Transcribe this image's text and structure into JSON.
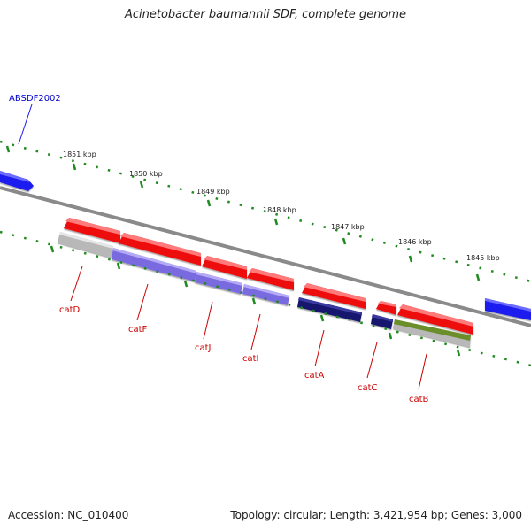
{
  "title": "Acinetobacter baumannii SDF, complete genome",
  "footer": {
    "accession": "Accession: NC_010400",
    "summary": "Topology: circular; Length: 3,421,954 bp; Genes: 3,000"
  },
  "top_gene_label": "ABSDF2002",
  "scale_labels": [
    "1851 kbp",
    "1850 kbp",
    "1849 kbp",
    "1848 kbp",
    "1847 kbp",
    "1846 kbp",
    "1845 kbp"
  ],
  "gene_labels": [
    "catD",
    "catF",
    "catJ",
    "catI",
    "catA",
    "catC",
    "catB"
  ],
  "colors": {
    "backbone": "#8a8a8a",
    "gene_forward": "#1a1aee",
    "gene_reverse": "#ee1111",
    "cds_gray": "#b8b8b8",
    "cds_blue": "#7a6ae0",
    "cds_navy": "#14146e",
    "cds_green": "#6a8e2a",
    "tick": "#1f8a1f",
    "gene_label": "#cc0000",
    "top_label": "#0000cc"
  }
}
